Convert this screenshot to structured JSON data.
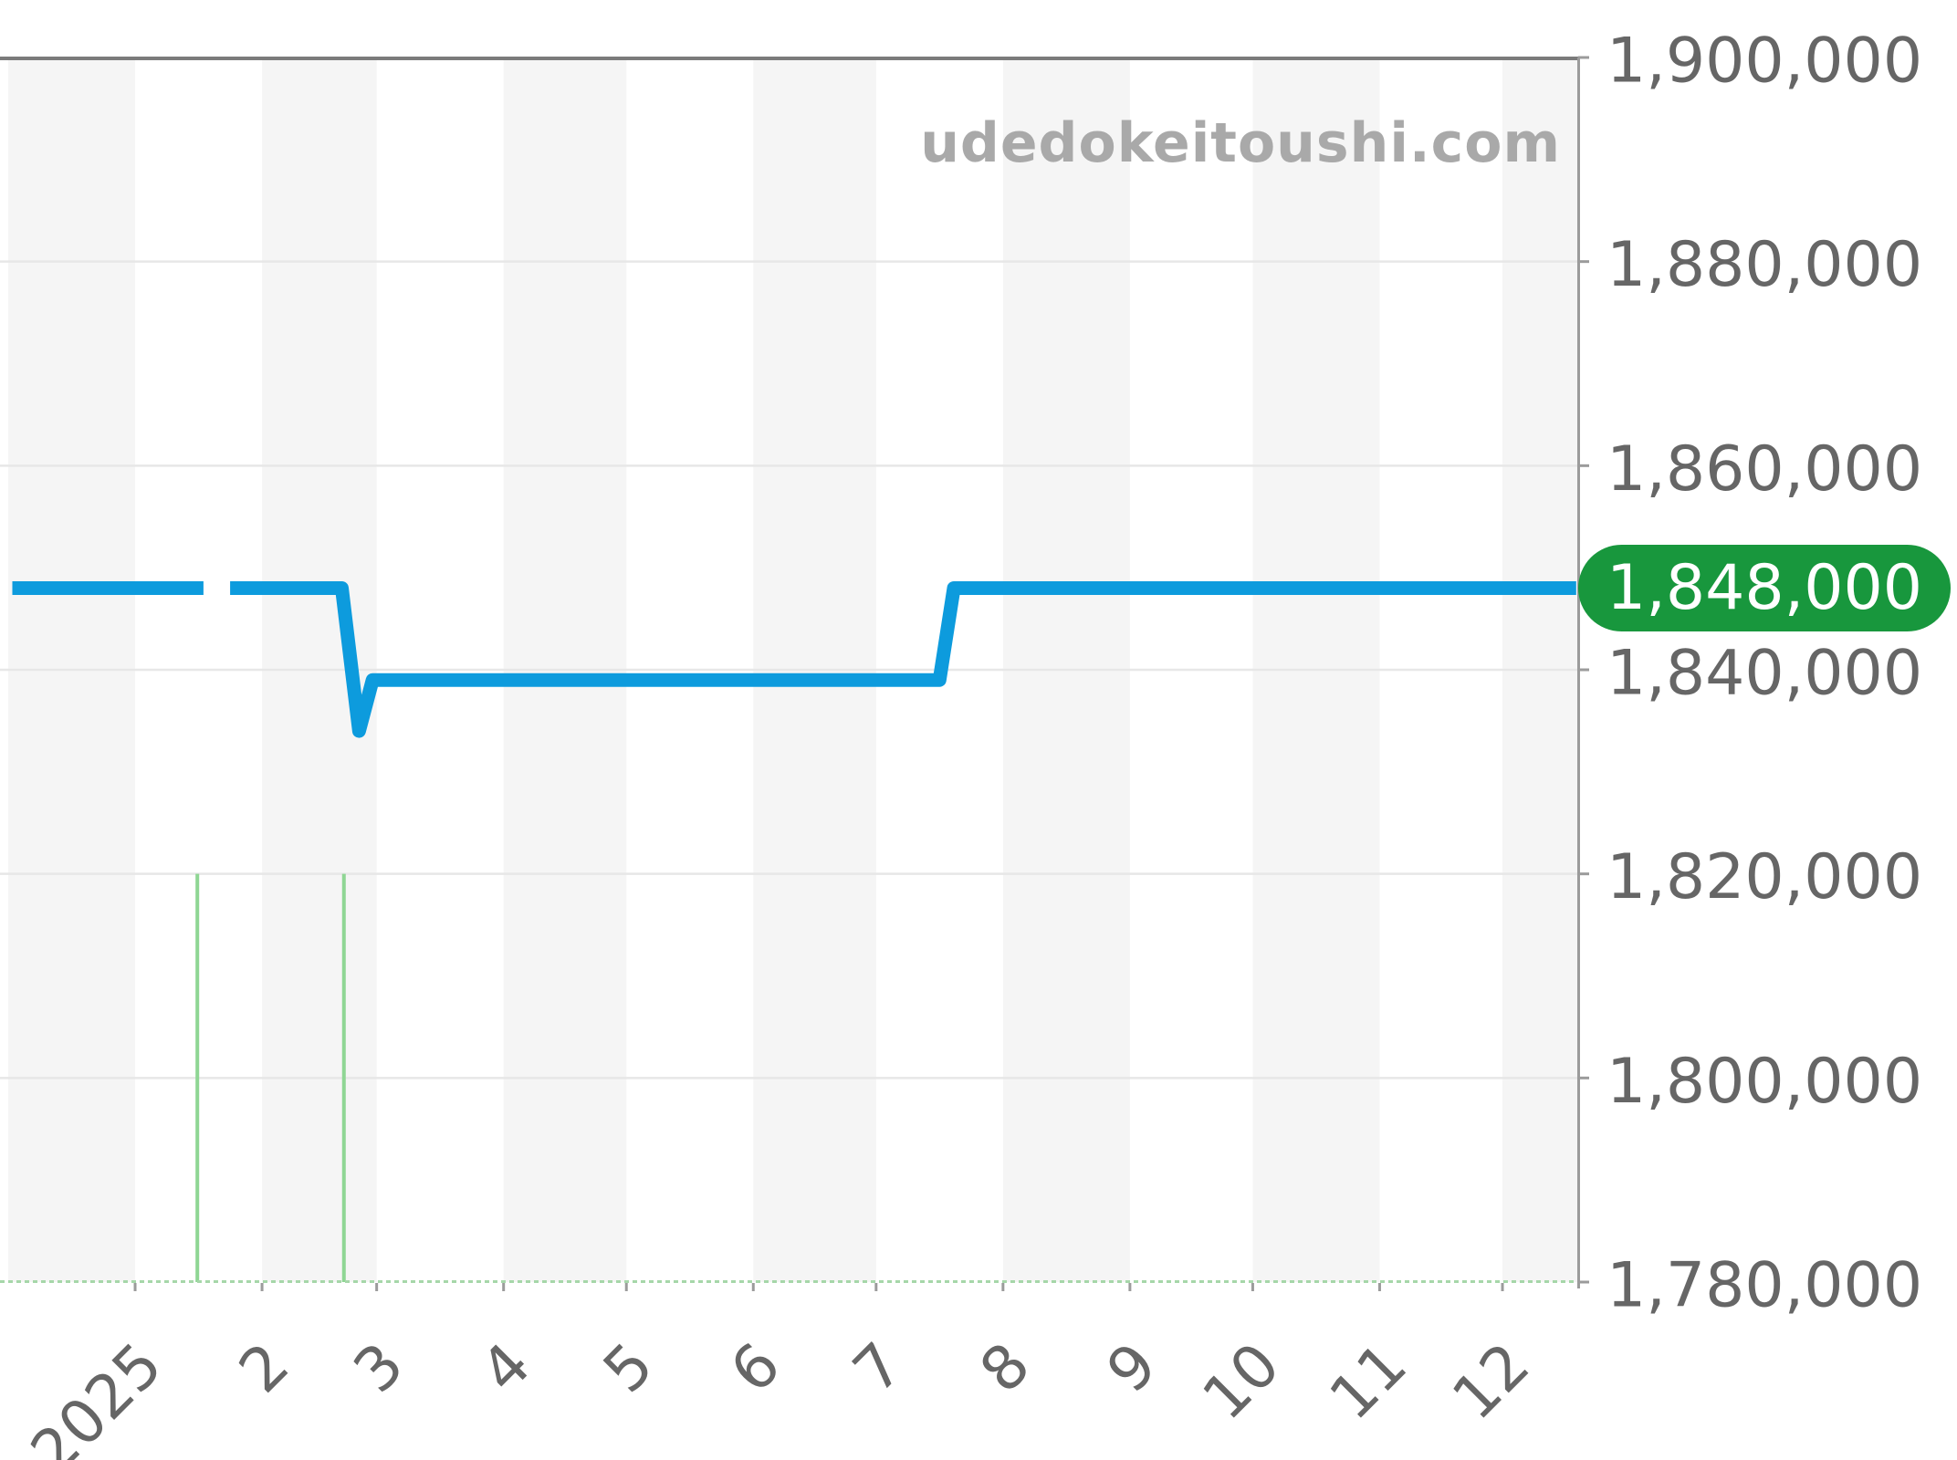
{
  "watermark": {
    "text": "udedokeitoushi.com",
    "color": "#a9a9a9"
  },
  "current_price_badge": {
    "label": "1,848,000",
    "value": 1848000,
    "bg_color": "#18973d",
    "text_color": "#ffffff"
  },
  "chart_data": {
    "type": "line",
    "title": "",
    "x_axis": {
      "tick_labels": [
        "2025",
        "2",
        "3",
        "4",
        "5",
        "6",
        "7",
        "8",
        "9",
        "10",
        "11",
        "12"
      ],
      "tick_days": [
        31,
        62,
        90,
        121,
        151,
        182,
        212,
        243,
        274,
        304,
        335,
        365
      ],
      "month_boundaries_days": [
        0,
        31,
        62,
        90,
        121,
        151,
        182,
        212,
        243,
        274,
        304,
        335,
        365,
        387
      ],
      "range_days": [
        0,
        387
      ],
      "day0": "first December shown before the 2025 tick"
    },
    "y_axis": {
      "side": "right",
      "tick_labels": [
        "1,900,000",
        "1,880,000",
        "1,860,000",
        "1,840,000",
        "1,820,000",
        "1,800,000",
        "1,780,000"
      ],
      "tick_values": [
        1900000,
        1880000,
        1860000,
        1840000,
        1820000,
        1800000,
        1780000
      ],
      "range": [
        1780000,
        1900000
      ]
    },
    "series": [
      {
        "name": "price",
        "color": "#0d9bdd",
        "line_width": 15,
        "current_value": 1848000,
        "segments": [
          [
            [
              1,
              1848000
            ],
            [
              47.7,
              1848000
            ]
          ],
          [
            [
              54.2,
              1848000
            ],
            [
              81.5,
              1848000
            ],
            [
              85.7,
              1834000
            ],
            [
              89,
              1839000
            ],
            [
              227.5,
              1839000
            ],
            [
              231,
              1848000
            ],
            [
              383,
              1848000
            ]
          ]
        ]
      }
    ],
    "event_lines": {
      "days": [
        46.2,
        82
      ],
      "top_value": 1820000,
      "bottom_value": 1780000,
      "color": "#8fd694",
      "width": 4
    },
    "grid": {
      "band_fill": "#f5f5f5",
      "gridline_color": "#e7e7e7",
      "top_border_color": "#7b7b7b",
      "axis_color": "#9b9b9b",
      "baseline_dotted_color": "#a6d7a9",
      "label_color": "#666666"
    },
    "legend": false
  }
}
